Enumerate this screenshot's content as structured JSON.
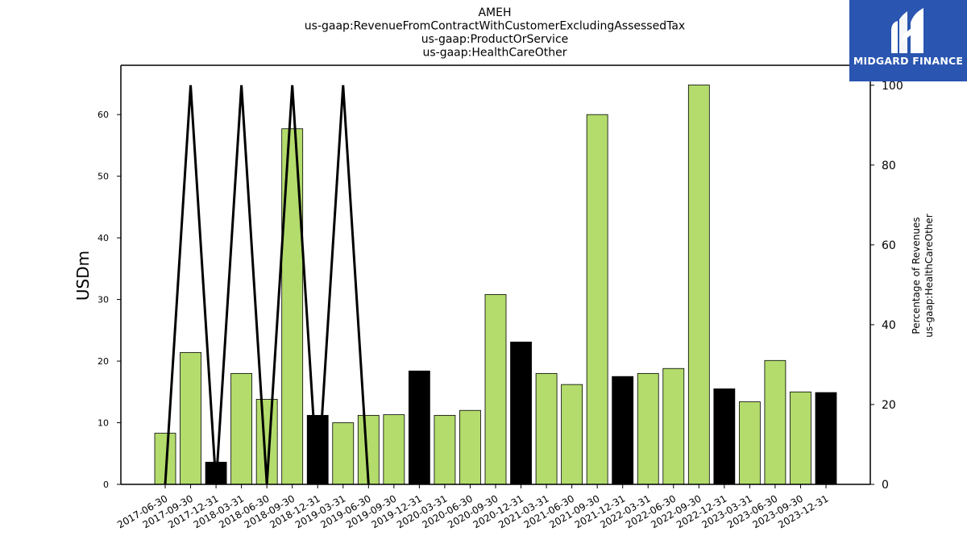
{
  "chart_data": {
    "type": "bar",
    "title_lines": [
      "AMEH",
      "us-gaap:RevenueFromContractWithCustomerExcludingAssessedTax",
      "us-gaap:ProductOrService",
      "us-gaap:HealthCareOther"
    ],
    "ylabel": "USDm",
    "ylabel_right_lines": [
      "Percentage of Revenues",
      "us-gaap:HealthCareOther"
    ],
    "ylim": [
      0,
      68
    ],
    "yticks": [
      0,
      10,
      20,
      30,
      40,
      50,
      60
    ],
    "ylim_right": [
      0,
      105
    ],
    "yticks_right": [
      0,
      20,
      40,
      60,
      80,
      100
    ],
    "categories": [
      "2017-06-30",
      "2017-09-30",
      "2017-12-31",
      "2018-03-31",
      "2018-06-30",
      "2018-09-30",
      "2018-12-31",
      "2019-03-31",
      "2019-06-30",
      "2019-09-30",
      "2019-12-31",
      "2020-03-31",
      "2020-06-30",
      "2020-09-30",
      "2020-12-31",
      "2021-03-31",
      "2021-06-30",
      "2021-09-30",
      "2021-12-31",
      "2022-03-31",
      "2022-06-30",
      "2022-09-30",
      "2022-12-31",
      "2023-03-31",
      "2023-06-30",
      "2023-09-30",
      "2023-12-31"
    ],
    "values": [
      8.3,
      21.4,
      3.6,
      18.0,
      13.8,
      57.7,
      11.2,
      10.0,
      11.2,
      11.3,
      18.4,
      11.2,
      12.0,
      30.8,
      23.1,
      18.0,
      16.2,
      60.0,
      17.5,
      18.0,
      18.8,
      64.8,
      15.5,
      13.4,
      20.1,
      15.0,
      14.9
    ],
    "bar_colors": [
      "#b3dc6c",
      "#b3dc6c",
      "#000000",
      "#b3dc6c",
      "#b3dc6c",
      "#b3dc6c",
      "#000000",
      "#b3dc6c",
      "#b3dc6c",
      "#b3dc6c",
      "#000000",
      "#b3dc6c",
      "#b3dc6c",
      "#b3dc6c",
      "#000000",
      "#b3dc6c",
      "#b3dc6c",
      "#b3dc6c",
      "#000000",
      "#b3dc6c",
      "#b3dc6c",
      "#b3dc6c",
      "#000000",
      "#b3dc6c",
      "#b3dc6c",
      "#b3dc6c",
      "#000000"
    ],
    "line_series": {
      "axis": "right",
      "x": [
        "2017-06-30",
        "2017-09-30",
        "2017-12-31",
        "2018-03-31",
        "2018-06-30",
        "2018-09-30",
        "2018-12-31",
        "2019-03-31",
        "2019-06-30"
      ],
      "values": [
        0,
        100,
        0,
        100,
        0,
        100,
        0,
        100,
        0
      ],
      "color": "#000000"
    },
    "grid": false,
    "legend": "none"
  },
  "logo": {
    "text": "MIDGARD FINANCE",
    "background": "#2a55b0"
  }
}
